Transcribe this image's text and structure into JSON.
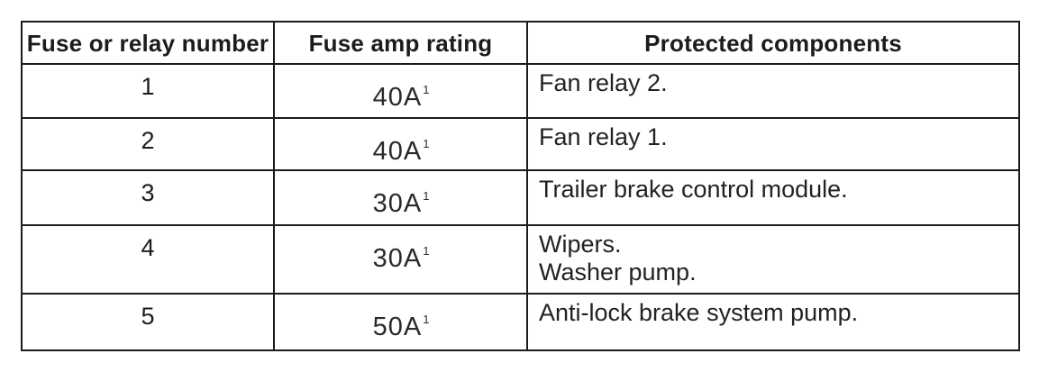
{
  "colors": {
    "background": "#ffffff",
    "border": "#1c1c1c",
    "text": "#1c1c1c"
  },
  "table": {
    "headers": [
      "Fuse or relay number",
      "Fuse amp rating",
      "Protected components"
    ],
    "rows": [
      {
        "number": "1",
        "rating": "40A",
        "rating_footnote": "1",
        "components": [
          "Fan relay 2."
        ]
      },
      {
        "number": "2",
        "rating": "40A",
        "rating_footnote": "1",
        "components": [
          "Fan relay 1."
        ]
      },
      {
        "number": "3",
        "rating": "30A",
        "rating_footnote": "1",
        "components": [
          "Trailer brake control module."
        ]
      },
      {
        "number": "4",
        "rating": "30A",
        "rating_footnote": "1",
        "components": [
          "Wipers.",
          "Washer pump."
        ]
      },
      {
        "number": "5",
        "rating": "50A",
        "rating_footnote": "1",
        "components": [
          "Anti-lock brake system pump."
        ]
      }
    ]
  }
}
